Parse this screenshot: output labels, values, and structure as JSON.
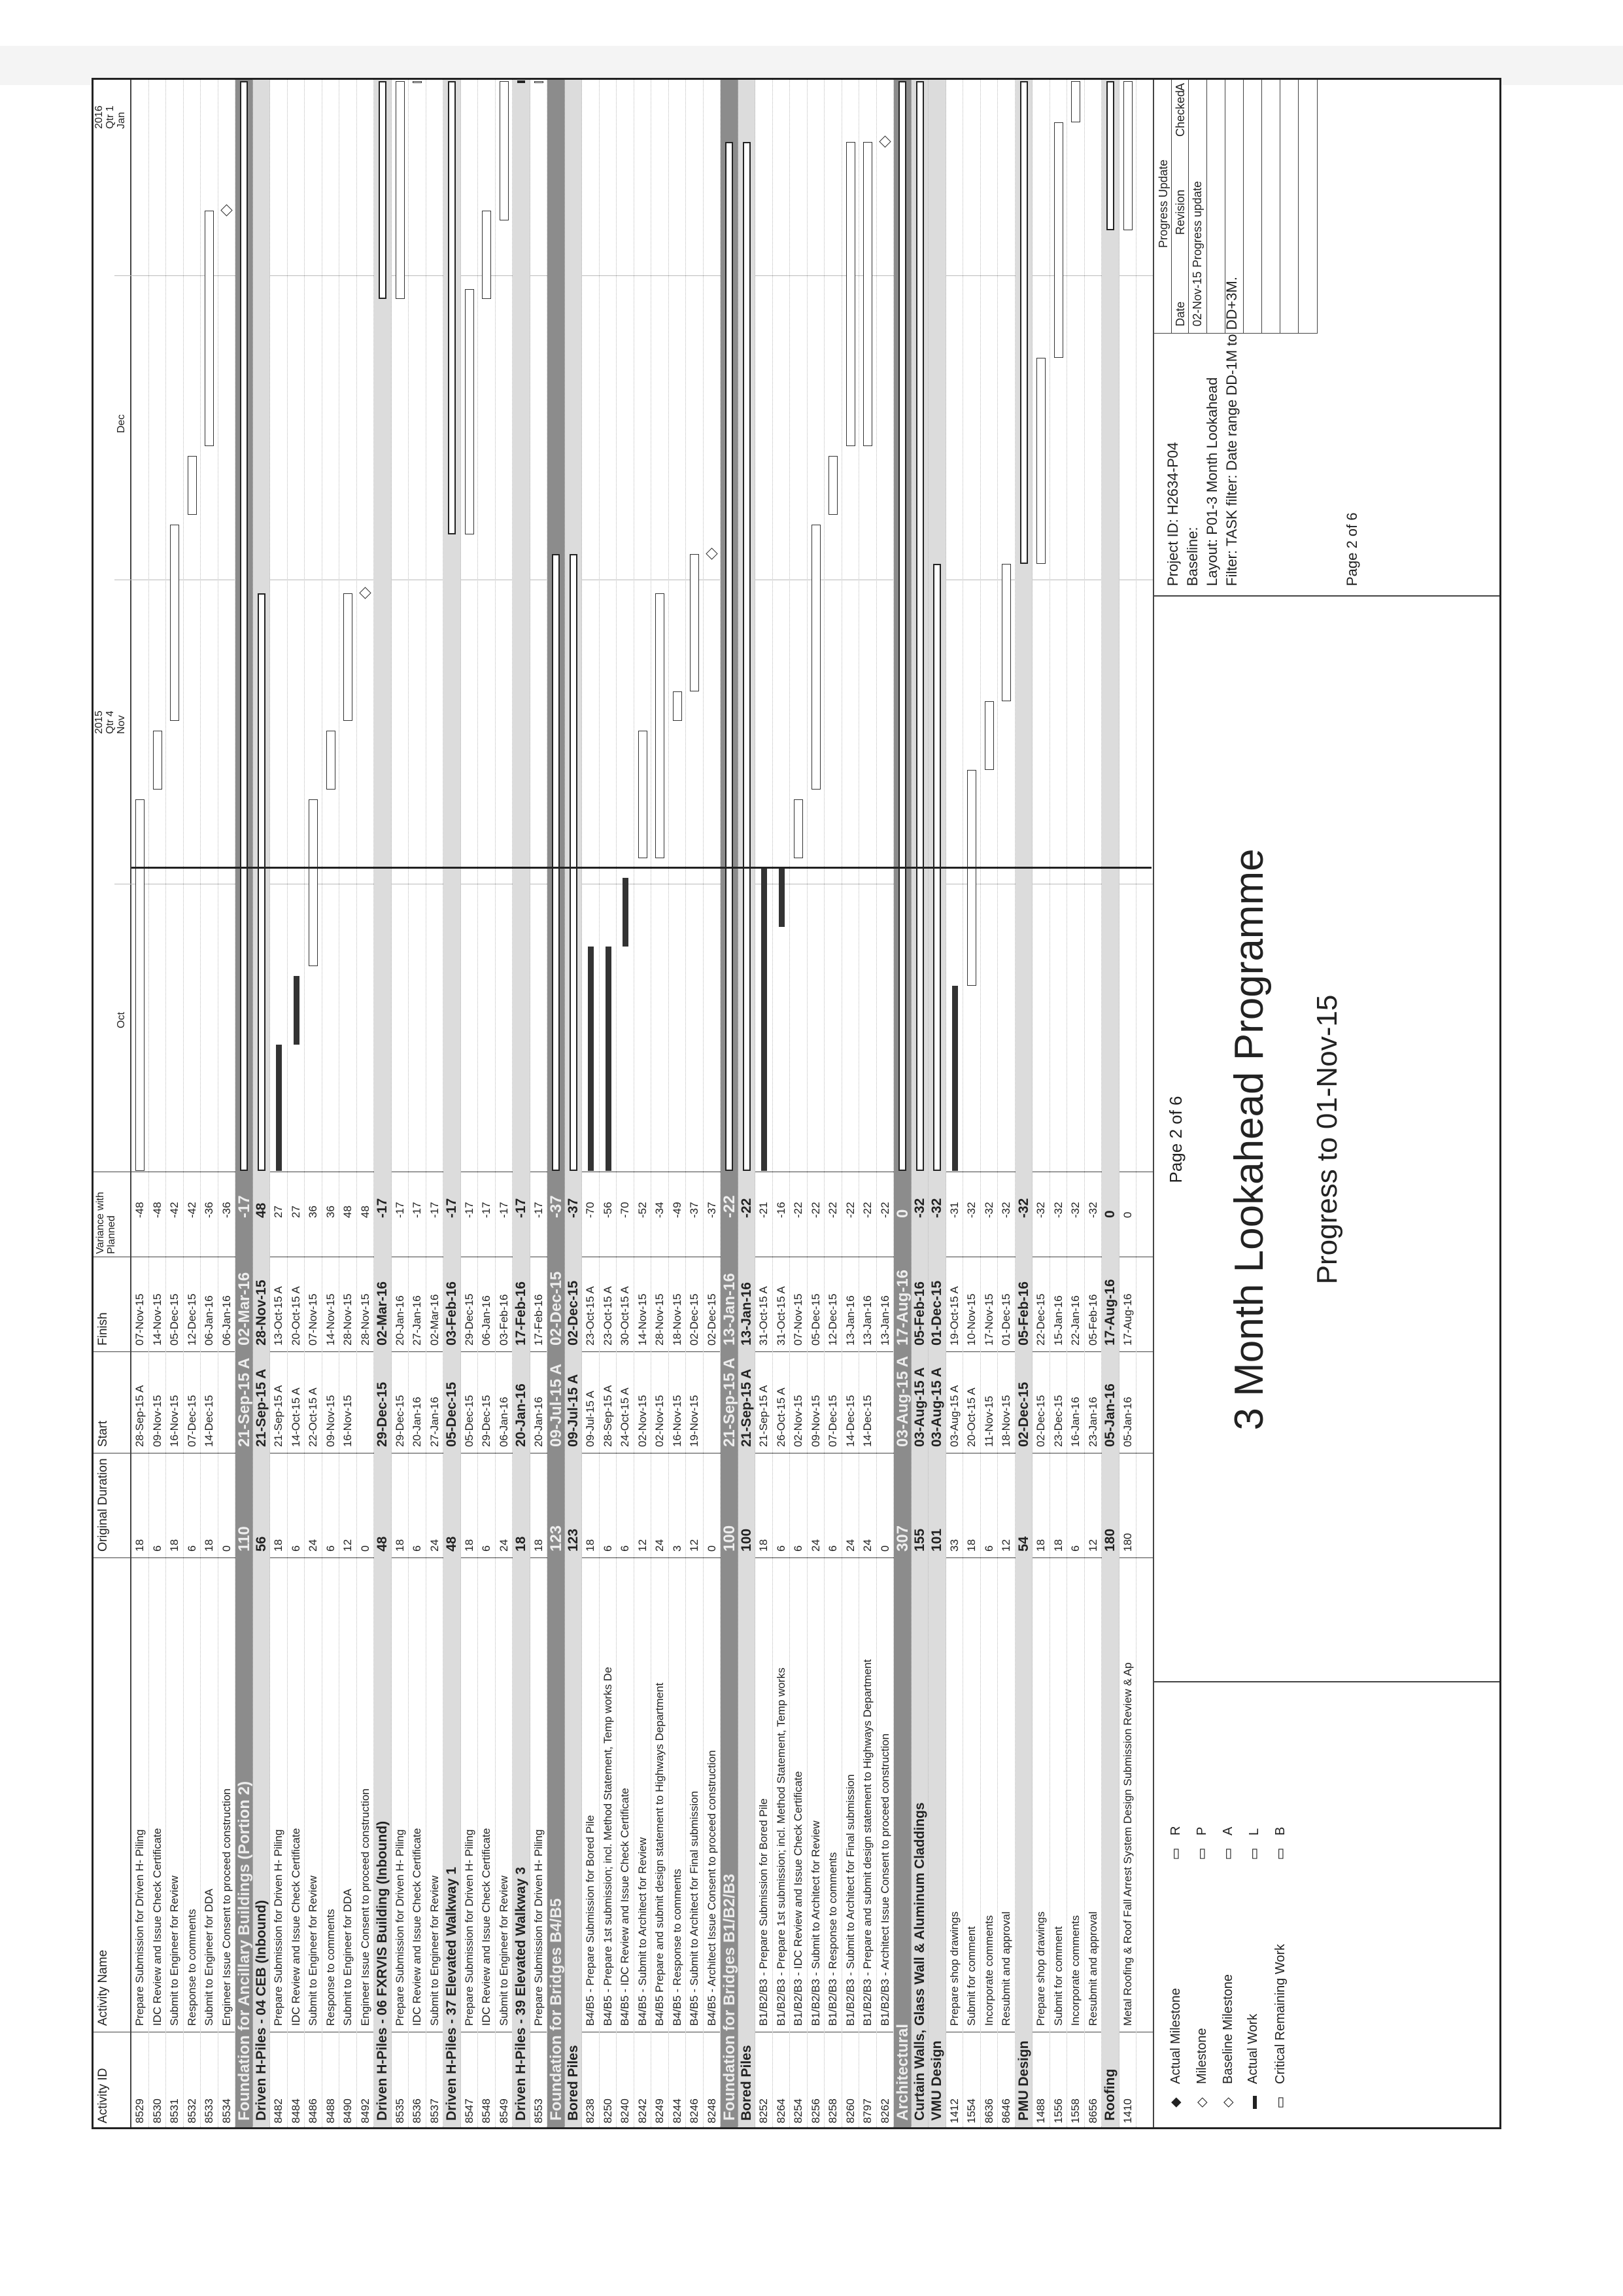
{
  "header": {
    "activity_id": "Activity ID",
    "activity_name": "Activity Name",
    "original_duration": "Original Duration",
    "start": "Start",
    "finish": "Finish",
    "variance": "Variance with Planned",
    "year_2015": "2015",
    "qtr_2015": "Qtr 4",
    "year_2016": "2016",
    "qtr_2016": "Qtr 1",
    "months": [
      "Oct",
      "Nov",
      "Dec",
      "Jan"
    ]
  },
  "rows": [
    {
      "id": "8529",
      "name": "Prepare Submission for Driven H- Piling",
      "dur": "18",
      "start": "28-Sep-15 A",
      "finish": "07-Nov-15",
      "var": "-48"
    },
    {
      "id": "8530",
      "name": "IDC Review and Issue Check Certificate",
      "dur": "6",
      "start": "09-Nov-15",
      "finish": "14-Nov-15",
      "var": "-48"
    },
    {
      "id": "8531",
      "name": "Submit to Engineer for Review",
      "dur": "18",
      "start": "16-Nov-15",
      "finish": "05-Dec-15",
      "var": "-42"
    },
    {
      "id": "8532",
      "name": "Response to comments",
      "dur": "6",
      "start": "07-Dec-15",
      "finish": "12-Dec-15",
      "var": "-42"
    },
    {
      "id": "8533",
      "name": "Submit to Engineer for DDA",
      "dur": "18",
      "start": "14-Dec-15",
      "finish": "06-Jan-16",
      "var": "-36"
    },
    {
      "id": "8534",
      "name": "Engineer Issue Consent to proceed construction",
      "dur": "0",
      "start": "",
      "finish": "06-Jan-16",
      "var": "-36"
    },
    {
      "band": true,
      "name": "Foundation for Ancillary Buildings (Portion 2)",
      "dur": "110",
      "start": "21-Sep-15 A",
      "finish": "02-Mar-16",
      "var": "-17"
    },
    {
      "hdr": true,
      "name": "Driven H-Piles - 04 CEB (Inbound)",
      "dur": "56",
      "start": "21-Sep-15 A",
      "finish": "28-Nov-15",
      "var": "48"
    },
    {
      "id": "8482",
      "name": "Prepare Submission for Driven H- Piling",
      "dur": "18",
      "start": "21-Sep-15 A",
      "finish": "13-Oct-15 A",
      "var": "27"
    },
    {
      "id": "8484",
      "name": "IDC Review and Issue Check Certificate",
      "dur": "6",
      "start": "14-Oct-15 A",
      "finish": "20-Oct-15 A",
      "var": "27"
    },
    {
      "id": "8486",
      "name": "Submit to Engineer for Review",
      "dur": "24",
      "start": "22-Oct-15 A",
      "finish": "07-Nov-15",
      "var": "36"
    },
    {
      "id": "8488",
      "name": "Response to comments",
      "dur": "6",
      "start": "09-Nov-15",
      "finish": "14-Nov-15",
      "var": "36"
    },
    {
      "id": "8490",
      "name": "Submit to Engineer for DDA",
      "dur": "12",
      "start": "16-Nov-15",
      "finish": "28-Nov-15",
      "var": "48"
    },
    {
      "id": "8492",
      "name": "Engineer Issue Consent to proceed construction",
      "dur": "0",
      "start": "",
      "finish": "28-Nov-15",
      "var": "48"
    },
    {
      "hdr": true,
      "name": "Driven H-Piles - 06 FXRVIS Building (Inbound)",
      "dur": "48",
      "start": "29-Dec-15",
      "finish": "02-Mar-16",
      "var": "-17"
    },
    {
      "id": "8535",
      "name": "Prepare Submission for Driven H- Piling",
      "dur": "18",
      "start": "29-Dec-15",
      "finish": "20-Jan-16",
      "var": "-17"
    },
    {
      "id": "8536",
      "name": "IDC Review and Issue Check Certificate",
      "dur": "6",
      "start": "20-Jan-16",
      "finish": "27-Jan-16",
      "var": "-17"
    },
    {
      "id": "8537",
      "name": "Submit to Engineer for Review",
      "dur": "24",
      "start": "27-Jan-16",
      "finish": "02-Mar-16",
      "var": "-17"
    },
    {
      "hdr": true,
      "name": "Driven H-Piles - 37 Elevated Walkway 1",
      "dur": "48",
      "start": "05-Dec-15",
      "finish": "03-Feb-16",
      "var": "-17"
    },
    {
      "id": "8547",
      "name": "Prepare Submission for Driven H- Piling",
      "dur": "18",
      "start": "05-Dec-15",
      "finish": "29-Dec-15",
      "var": "-17"
    },
    {
      "id": "8548",
      "name": "IDC Review and Issue Check Certificate",
      "dur": "6",
      "start": "29-Dec-15",
      "finish": "06-Jan-16",
      "var": "-17"
    },
    {
      "id": "8549",
      "name": "Submit to Engineer for Review",
      "dur": "24",
      "start": "06-Jan-16",
      "finish": "03-Feb-16",
      "var": "-17"
    },
    {
      "hdr": true,
      "name": "Driven H-Piles - 39 Elevated Walkway 3",
      "dur": "18",
      "start": "20-Jan-16",
      "finish": "17-Feb-16",
      "var": "-17"
    },
    {
      "id": "8553",
      "name": "Prepare Submission for Driven H- Piling",
      "dur": "18",
      "start": "20-Jan-16",
      "finish": "17-Feb-16",
      "var": "-17"
    },
    {
      "band": true,
      "name": "Foundation for Bridges B4/B5",
      "dur": "123",
      "start": "09-Jul-15 A",
      "finish": "02-Dec-15",
      "var": "-37"
    },
    {
      "hdr": true,
      "name": "Bored Piles",
      "dur": "123",
      "start": "09-Jul-15 A",
      "finish": "02-Dec-15",
      "var": "-37"
    },
    {
      "id": "8238",
      "name": "B4/B5 - Prepare Submission for Bored Pile",
      "dur": "18",
      "start": "09-Jul-15 A",
      "finish": "23-Oct-15 A",
      "var": "-70"
    },
    {
      "id": "8250",
      "name": "B4/B5 - Prepare 1st submission; incl. Method Statement, Temp works De",
      "dur": "6",
      "start": "28-Sep-15 A",
      "finish": "23-Oct-15 A",
      "var": "-56"
    },
    {
      "id": "8240",
      "name": "B4/B5 - IDC Review and Issue Check Certificate",
      "dur": "6",
      "start": "24-Oct-15 A",
      "finish": "30-Oct-15 A",
      "var": "-70"
    },
    {
      "id": "8242",
      "name": "B4/B5 - Submit to Architect for Review",
      "dur": "12",
      "start": "02-Nov-15",
      "finish": "14-Nov-15",
      "var": "-52"
    },
    {
      "id": "8249",
      "name": "B4/B5 Prepare and submit design statement to Highways Department",
      "dur": "24",
      "start": "02-Nov-15",
      "finish": "28-Nov-15",
      "var": "-34"
    },
    {
      "id": "8244",
      "name": "B4/B5 - Response to comments",
      "dur": "3",
      "start": "16-Nov-15",
      "finish": "18-Nov-15",
      "var": "-49"
    },
    {
      "id": "8246",
      "name": "B4/B5 - Submit to Architect for Final submission",
      "dur": "12",
      "start": "19-Nov-15",
      "finish": "02-Dec-15",
      "var": "-37"
    },
    {
      "id": "8248",
      "name": "B4/B5 - Architect Issue Consent to proceed construction",
      "dur": "0",
      "start": "",
      "finish": "02-Dec-15",
      "var": "-37"
    },
    {
      "band": true,
      "name": "Foundation for Bridges B1/B2/B3",
      "dur": "100",
      "start": "21-Sep-15 A",
      "finish": "13-Jan-16",
      "var": "-22"
    },
    {
      "hdr": true,
      "name": "Bored Piles",
      "dur": "100",
      "start": "21-Sep-15 A",
      "finish": "13-Jan-16",
      "var": "-22"
    },
    {
      "id": "8252",
      "name": "B1/B2/B3 - Prepare Submission for Bored Pile",
      "dur": "18",
      "start": "21-Sep-15 A",
      "finish": "31-Oct-15 A",
      "var": "-21"
    },
    {
      "id": "8264",
      "name": "B1/B2/B3 - Prepare 1st submission; incl. Method Statement, Temp works",
      "dur": "6",
      "start": "26-Oct-15 A",
      "finish": "31-Oct-15 A",
      "var": "-16"
    },
    {
      "id": "8254",
      "name": "B1/B2/B3 - IDC Review and Issue Check Certificate",
      "dur": "6",
      "start": "02-Nov-15",
      "finish": "07-Nov-15",
      "var": "-22"
    },
    {
      "id": "8256",
      "name": "B1/B2/B3 - Submit to Architect for Review",
      "dur": "24",
      "start": "09-Nov-15",
      "finish": "05-Dec-15",
      "var": "-22"
    },
    {
      "id": "8258",
      "name": "B1/B2/B3 - Response to comments",
      "dur": "6",
      "start": "07-Dec-15",
      "finish": "12-Dec-15",
      "var": "-22"
    },
    {
      "id": "8260",
      "name": "B1/B2/B3 - Submit to Architect for Final submission",
      "dur": "24",
      "start": "14-Dec-15",
      "finish": "13-Jan-16",
      "var": "-22"
    },
    {
      "id": "8797",
      "name": "B1/B2/B3 - Prepare and submit design statement to Highways Department",
      "dur": "24",
      "start": "14-Dec-15",
      "finish": "13-Jan-16",
      "var": "-22"
    },
    {
      "id": "8262",
      "name": "B1/B2/B3 - Architect Issue Consent to proceed construction",
      "dur": "0",
      "start": "",
      "finish": "13-Jan-16",
      "var": "-22"
    },
    {
      "band": true,
      "name": "Architectural",
      "dur": "307",
      "start": "03-Aug-15 A",
      "finish": "17-Aug-16",
      "var": "0"
    },
    {
      "hdr": true,
      "name": "Curtain Walls, Glass Wall & Aluminum Claddings",
      "dur": "155",
      "start": "03-Aug-15 A",
      "finish": "05-Feb-16",
      "var": "-32"
    },
    {
      "hdr": true,
      "name": "VMU Design",
      "dur": "101",
      "start": "03-Aug-15 A",
      "finish": "01-Dec-15",
      "var": "-32"
    },
    {
      "id": "1412",
      "name": "Prepare shop drawings",
      "dur": "33",
      "start": "03-Aug-15 A",
      "finish": "19-Oct-15 A",
      "var": "-31"
    },
    {
      "id": "1554",
      "name": "Submit for comment",
      "dur": "18",
      "start": "20-Oct-15 A",
      "finish": "10-Nov-15",
      "var": "-32"
    },
    {
      "id": "8636",
      "name": "Incorporate comments",
      "dur": "6",
      "start": "11-Nov-15",
      "finish": "17-Nov-15",
      "var": "-32"
    },
    {
      "id": "8646",
      "name": "Resubmit and approval",
      "dur": "12",
      "start": "18-Nov-15",
      "finish": "01-Dec-15",
      "var": "-32"
    },
    {
      "hdr": true,
      "name": "PMU Design",
      "dur": "54",
      "start": "02-Dec-15",
      "finish": "05-Feb-16",
      "var": "-32"
    },
    {
      "id": "1488",
      "name": "Prepare shop drawings",
      "dur": "18",
      "start": "02-Dec-15",
      "finish": "22-Dec-15",
      "var": "-32"
    },
    {
      "id": "1556",
      "name": "Submit for comment",
      "dur": "18",
      "start": "23-Dec-15",
      "finish": "15-Jan-16",
      "var": "-32"
    },
    {
      "id": "1558",
      "name": "Incorporate comments",
      "dur": "6",
      "start": "16-Jan-16",
      "finish": "22-Jan-16",
      "var": "-32"
    },
    {
      "id": "8656",
      "name": "Resubmit and approval",
      "dur": "12",
      "start": "23-Jan-16",
      "finish": "05-Feb-16",
      "var": "-32"
    },
    {
      "hdr": true,
      "name": "Roofing",
      "dur": "180",
      "start": "05-Jan-16",
      "finish": "17-Aug-16",
      "var": "0"
    },
    {
      "id": "1410",
      "name": "Metal Roofing & Roof Fall Arrest System Design Submission Review & Ap",
      "dur": "180",
      "start": "05-Jan-16",
      "finish": "17-Aug-16",
      "var": "0"
    }
  ],
  "legend": {
    "items": [
      "Actual Milestone",
      "Milestone",
      "Baseline Milestone",
      "Actual Work",
      "Critical Remaining Work"
    ],
    "codes": [
      "R",
      "P",
      "A",
      "L",
      "B"
    ]
  },
  "footer": {
    "page_top": "Page 2 of 6",
    "title": "3 Month Lookahead Programme",
    "subtitle": "Progress to 01-Nov-15",
    "project_id": "Project ID: H2634-P04",
    "baseline": "Baseline:",
    "layout": "Layout: P01-3 Month Lookahead",
    "filter": "Filter: TASK filter: Date range DD-1M to DD+3M.",
    "page": "Page 2 of 6"
  },
  "revision_table": {
    "title": "Progress Update",
    "date_h": "Date",
    "revision_h": "Revision",
    "checked_h": "Checked",
    "approved_h": "A",
    "date": "02-Nov-15",
    "revision": "Progress update"
  }
}
